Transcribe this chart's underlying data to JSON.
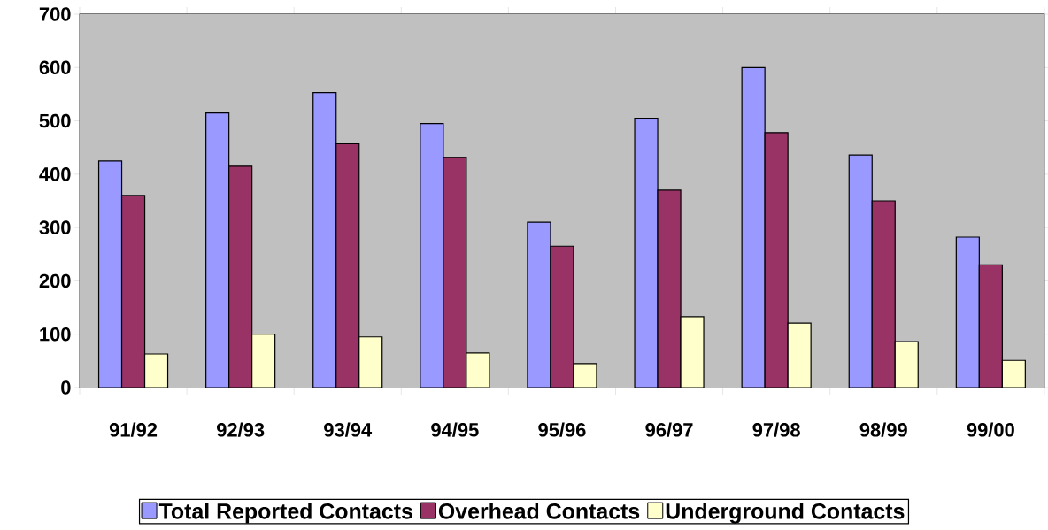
{
  "chart_data": {
    "type": "bar",
    "categories": [
      "91/92",
      "92/93",
      "93/94",
      "94/95",
      "95/96",
      "96/97",
      "97/98",
      "98/99",
      "99/00"
    ],
    "series": [
      {
        "name": "Total Reported Contacts",
        "color": "#9999ff",
        "values": [
          425,
          515,
          553,
          495,
          310,
          505,
          600,
          436,
          282
        ]
      },
      {
        "name": "Overhead Contacts",
        "color": "#993366",
        "values": [
          360,
          415,
          457,
          431,
          265,
          370,
          478,
          350,
          230
        ]
      },
      {
        "name": "Underground Contacts",
        "color": "#ffffcc",
        "values": [
          63,
          100,
          95,
          65,
          45,
          133,
          121,
          86,
          51
        ]
      }
    ],
    "ylim": [
      0,
      700
    ],
    "yticks": [
      0,
      100,
      200,
      300,
      400,
      500,
      600,
      700
    ],
    "grid": "y",
    "legend": "bottom"
  }
}
